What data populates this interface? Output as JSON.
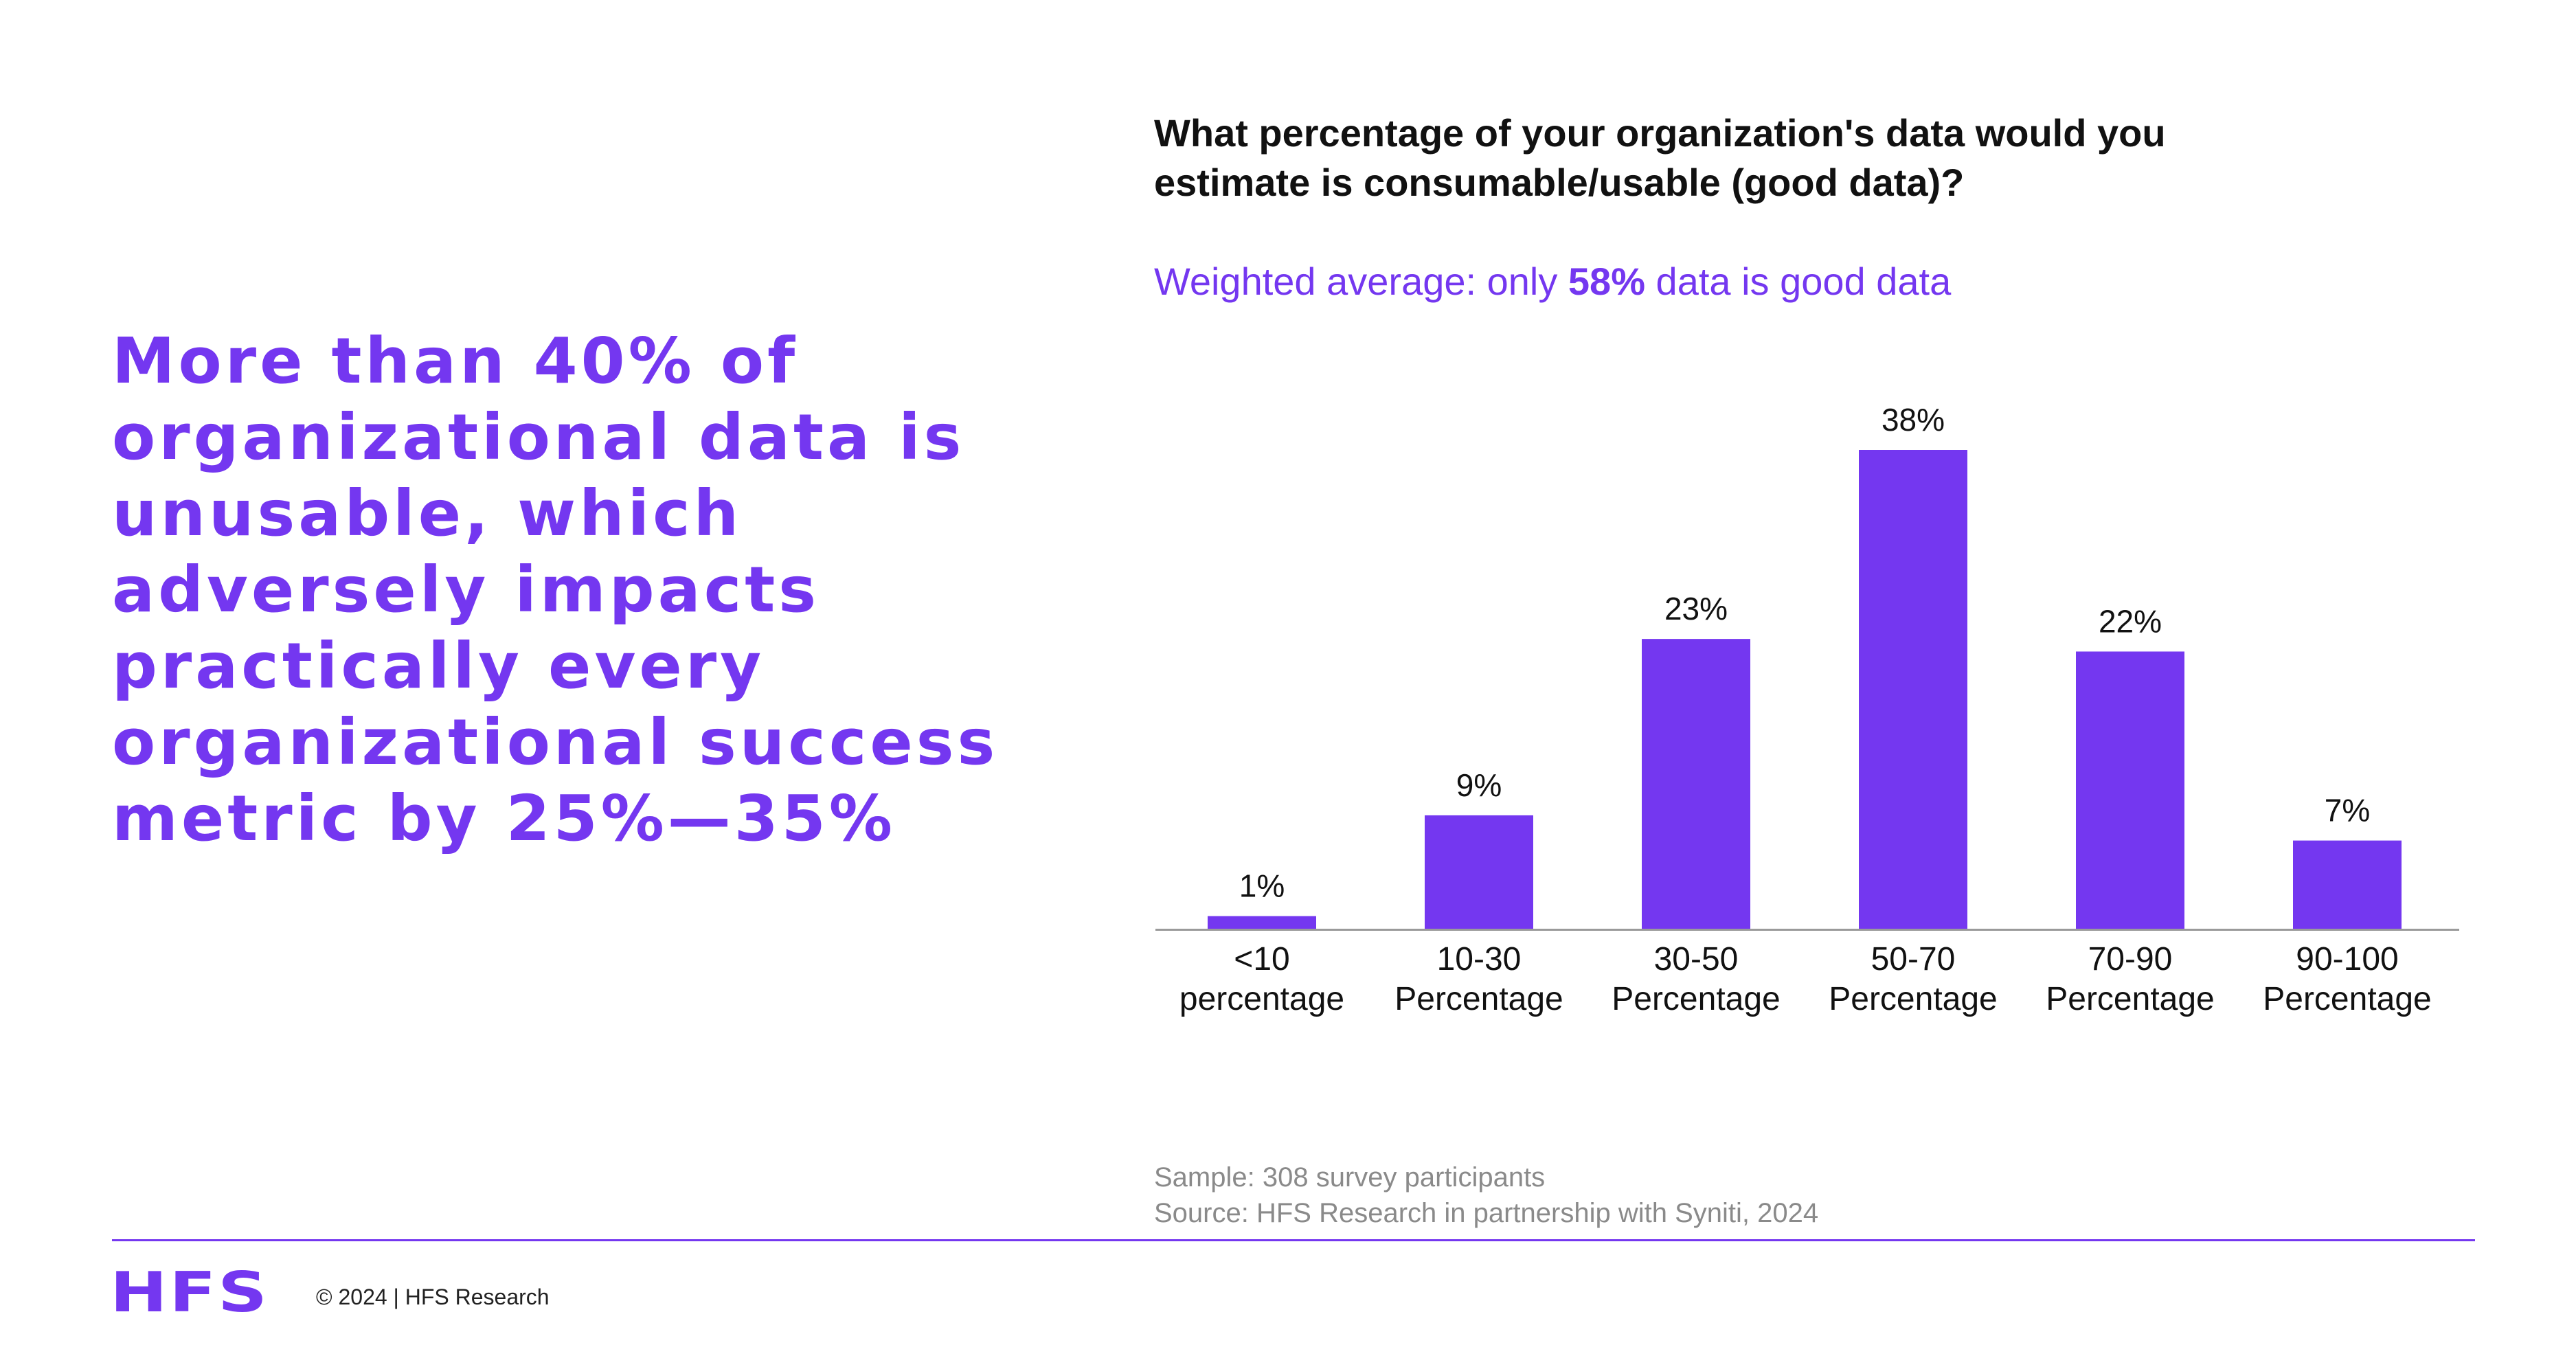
{
  "headline": "More than 40% of organizational data is unusable, which adversely impacts practically every organizational success metric by 25%—35%",
  "subtitle": {
    "prefix": "Weighted average: only ",
    "highlight": "58%",
    "suffix": " data is good data"
  },
  "notes": {
    "sample": "Sample: 308 survey participants",
    "source": "Source: HFS Research in partnership with Syniti, 2024"
  },
  "footer": {
    "logo": "HFS",
    "copyright": "© 2024 | HFS Research"
  },
  "colors": {
    "accent": "#7437f0",
    "text": "#111111",
    "muted": "#8a8a8a",
    "axis": "#9a9a9a"
  },
  "chart_data": {
    "type": "bar",
    "title": "What percentage of your organization's data would you estimate is consumable/usable (good data)?",
    "categories": [
      [
        "<10",
        "percentage"
      ],
      [
        "10-30",
        "Percentage"
      ],
      [
        "30-50",
        "Percentage"
      ],
      [
        "50-70",
        "Percentage"
      ],
      [
        "70-90",
        "Percentage"
      ],
      [
        "90-100",
        "Percentage"
      ]
    ],
    "values": [
      1,
      9,
      23,
      38,
      22,
      7
    ],
    "value_labels": [
      "1%",
      "9%",
      "23%",
      "38%",
      "22%",
      "7%"
    ],
    "unit": "%",
    "ylim": [
      0,
      38
    ],
    "grid": false,
    "legend": "none",
    "xlabel": "",
    "ylabel": ""
  }
}
